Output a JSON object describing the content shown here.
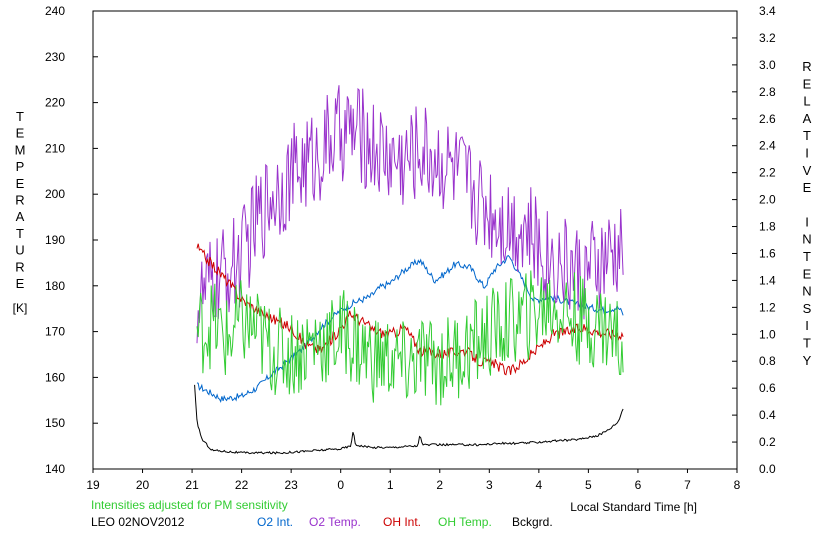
{
  "chart_data": {
    "type": "line",
    "left_axis": {
      "label": "TEMPERATURE",
      "unit": "[K]",
      "range": [
        140,
        240
      ],
      "ticks": [
        140,
        150,
        160,
        170,
        180,
        190,
        200,
        210,
        220,
        230,
        240
      ]
    },
    "right_axis": {
      "label": "RELATIVE INTENSITY",
      "range": [
        0.0,
        3.4
      ],
      "ticks": [
        "0.0",
        "0.2",
        "0.4",
        "0.6",
        "0.8",
        "1.0",
        "1.2",
        "1.4",
        "1.6",
        "1.8",
        "2.0",
        "2.2",
        "2.4",
        "2.6",
        "2.8",
        "3.0",
        "3.2",
        "3.4"
      ]
    },
    "x_axis": {
      "label": "Local Standard Time [h]",
      "range": [
        19,
        32
      ],
      "tick_labels": [
        "19",
        "20",
        "21",
        "22",
        "23",
        "0",
        "1",
        "2",
        "3",
        "4",
        "5",
        "6",
        "7",
        "8"
      ]
    },
    "note": "Intensities adjusted for PM sensitivity",
    "station_date": "LEO 02NOV2012",
    "grid": false,
    "legend_position": "bottom",
    "series": [
      {
        "name": "O2 Int.",
        "axis": "right",
        "color": "#0066cc",
        "noise": 0.025,
        "x": [
          21.1,
          21.3,
          21.6,
          22.0,
          22.3,
          22.6,
          23.0,
          23.3,
          23.6,
          24.0,
          24.3,
          24.6,
          24.8,
          25.0,
          25.3,
          25.6,
          25.9,
          26.1,
          26.3,
          26.6,
          26.9,
          27.1,
          27.4,
          27.6,
          27.9,
          28.2,
          28.5,
          28.8,
          29.0,
          29.3,
          29.6,
          29.7
        ],
        "y": [
          0.62,
          0.58,
          0.52,
          0.54,
          0.6,
          0.7,
          0.82,
          0.92,
          1.05,
          1.18,
          1.24,
          1.28,
          1.35,
          1.38,
          1.48,
          1.55,
          1.4,
          1.45,
          1.52,
          1.5,
          1.35,
          1.48,
          1.58,
          1.45,
          1.25,
          1.28,
          1.25,
          1.22,
          1.2,
          1.18,
          1.2,
          1.15
        ]
      },
      {
        "name": "O2 Temp.",
        "axis": "left",
        "color": "#9933cc",
        "noise": 11,
        "x": [
          21.1,
          21.4,
          21.7,
          22.0,
          22.3,
          22.6,
          22.9,
          23.2,
          23.5,
          23.8,
          24.1,
          24.4,
          24.7,
          25.0,
          25.3,
          25.6,
          25.9,
          26.2,
          26.5,
          26.8,
          27.1,
          27.4,
          27.7,
          28.0,
          28.3,
          28.6,
          28.9,
          29.2,
          29.5,
          29.7
        ],
        "y": [
          176,
          180,
          183,
          186,
          194,
          200,
          203,
          206,
          208,
          212,
          214,
          213,
          210,
          208,
          207,
          210,
          208,
          206,
          203,
          199,
          196,
          194,
          193,
          188,
          186,
          184,
          182,
          184,
          186,
          187
        ]
      },
      {
        "name": "OH Int.",
        "axis": "right",
        "color": "#cc0000",
        "noise": 0.04,
        "x": [
          21.1,
          21.2,
          21.4,
          21.7,
          22.0,
          22.3,
          22.6,
          23.0,
          23.3,
          23.6,
          23.9,
          24.2,
          24.5,
          24.7,
          25.0,
          25.3,
          25.6,
          25.9,
          26.2,
          26.5,
          26.8,
          27.1,
          27.4,
          27.7,
          28.0,
          28.3,
          28.6,
          28.9,
          29.2,
          29.5,
          29.7
        ],
        "y": [
          1.65,
          1.6,
          1.52,
          1.4,
          1.26,
          1.18,
          1.12,
          1.05,
          0.92,
          0.88,
          1.0,
          1.15,
          1.08,
          1.02,
          1.0,
          1.05,
          0.88,
          0.86,
          0.86,
          0.88,
          0.8,
          0.78,
          0.72,
          0.8,
          0.9,
          1.0,
          1.02,
          1.05,
          1.02,
          1.0,
          1.0
        ]
      },
      {
        "name": "OH Temp.",
        "axis": "left",
        "color": "#33cc33",
        "noise": 10,
        "x": [
          21.1,
          21.4,
          21.7,
          22.0,
          22.3,
          22.6,
          22.9,
          23.2,
          23.5,
          23.8,
          24.1,
          24.4,
          24.7,
          25.0,
          25.3,
          25.6,
          25.9,
          26.2,
          26.5,
          26.8,
          27.1,
          27.4,
          27.7,
          28.0,
          28.3,
          28.6,
          28.9,
          29.2,
          29.5,
          29.7
        ],
        "y": [
          170,
          172,
          168,
          172,
          170,
          166,
          165,
          166,
          168,
          168,
          170,
          166,
          164,
          164,
          162,
          164,
          163,
          164,
          166,
          168,
          170,
          172,
          173,
          175,
          176,
          174,
          172,
          172,
          170,
          166
        ]
      },
      {
        "name": "Bckgrd.",
        "axis": "right",
        "color": "#000000",
        "noise": 0.008,
        "x": [
          21.05,
          21.1,
          21.2,
          21.4,
          21.7,
          22.0,
          22.4,
          22.8,
          23.2,
          23.6,
          24.0,
          24.2,
          24.25,
          24.3,
          24.6,
          25.0,
          25.4,
          25.55,
          25.6,
          25.65,
          26.0,
          26.4,
          26.8,
          27.2,
          27.6,
          28.0,
          28.4,
          28.8,
          29.2,
          29.4,
          29.6,
          29.7
        ],
        "y": [
          0.62,
          0.35,
          0.22,
          0.14,
          0.13,
          0.12,
          0.12,
          0.12,
          0.13,
          0.14,
          0.15,
          0.17,
          0.28,
          0.18,
          0.16,
          0.16,
          0.17,
          0.17,
          0.25,
          0.18,
          0.18,
          0.18,
          0.18,
          0.19,
          0.19,
          0.2,
          0.21,
          0.22,
          0.25,
          0.29,
          0.35,
          0.45
        ]
      }
    ]
  }
}
